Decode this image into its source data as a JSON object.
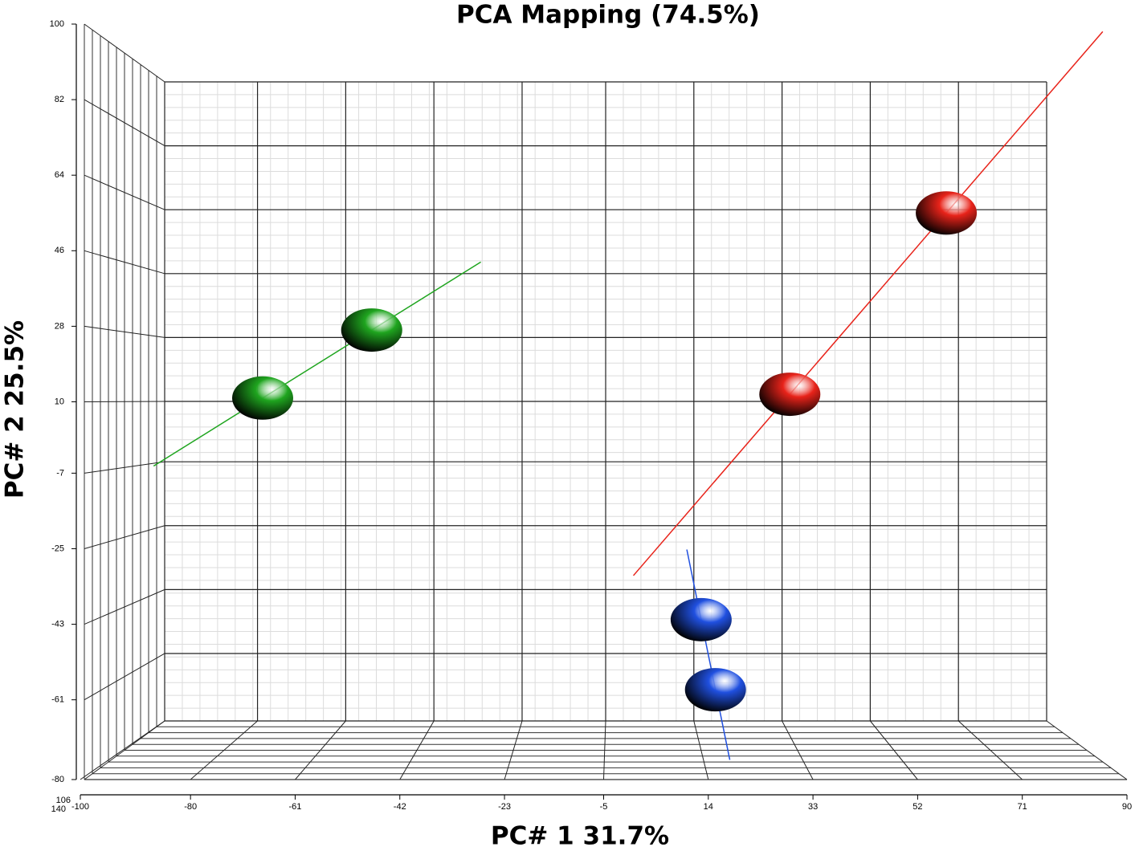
{
  "chart_data": {
    "type": "scatter",
    "title": "PCA Mapping (74.5%)",
    "x_label": "PC# 1 31.7%",
    "y_label": "PC# 2 25.5%",
    "xlim": [
      -100,
      90
    ],
    "xticks": [
      -100,
      -80,
      -61,
      -42,
      -23,
      -5,
      14,
      33,
      52,
      71,
      90
    ],
    "ylim": [
      -80,
      100
    ],
    "yticks": [
      -80,
      -61,
      -43,
      -25,
      -7,
      10,
      28,
      46,
      64,
      82,
      100
    ],
    "zticks": [
      140,
      106
    ],
    "grid": true,
    "series": [
      {
        "color": "#1fa51f",
        "x": [
          -66.9,
          -47.1
        ],
        "values": [
          10.9,
          27.1
        ]
      },
      {
        "color": "#e8231a",
        "x": [
          28.8,
          57.2
        ],
        "values": [
          11.8,
          55.0
        ]
      },
      {
        "color": "#2050e0",
        "x": [
          12.7,
          15.3
        ],
        "values": [
          -41.9,
          -58.6
        ]
      }
    ]
  }
}
